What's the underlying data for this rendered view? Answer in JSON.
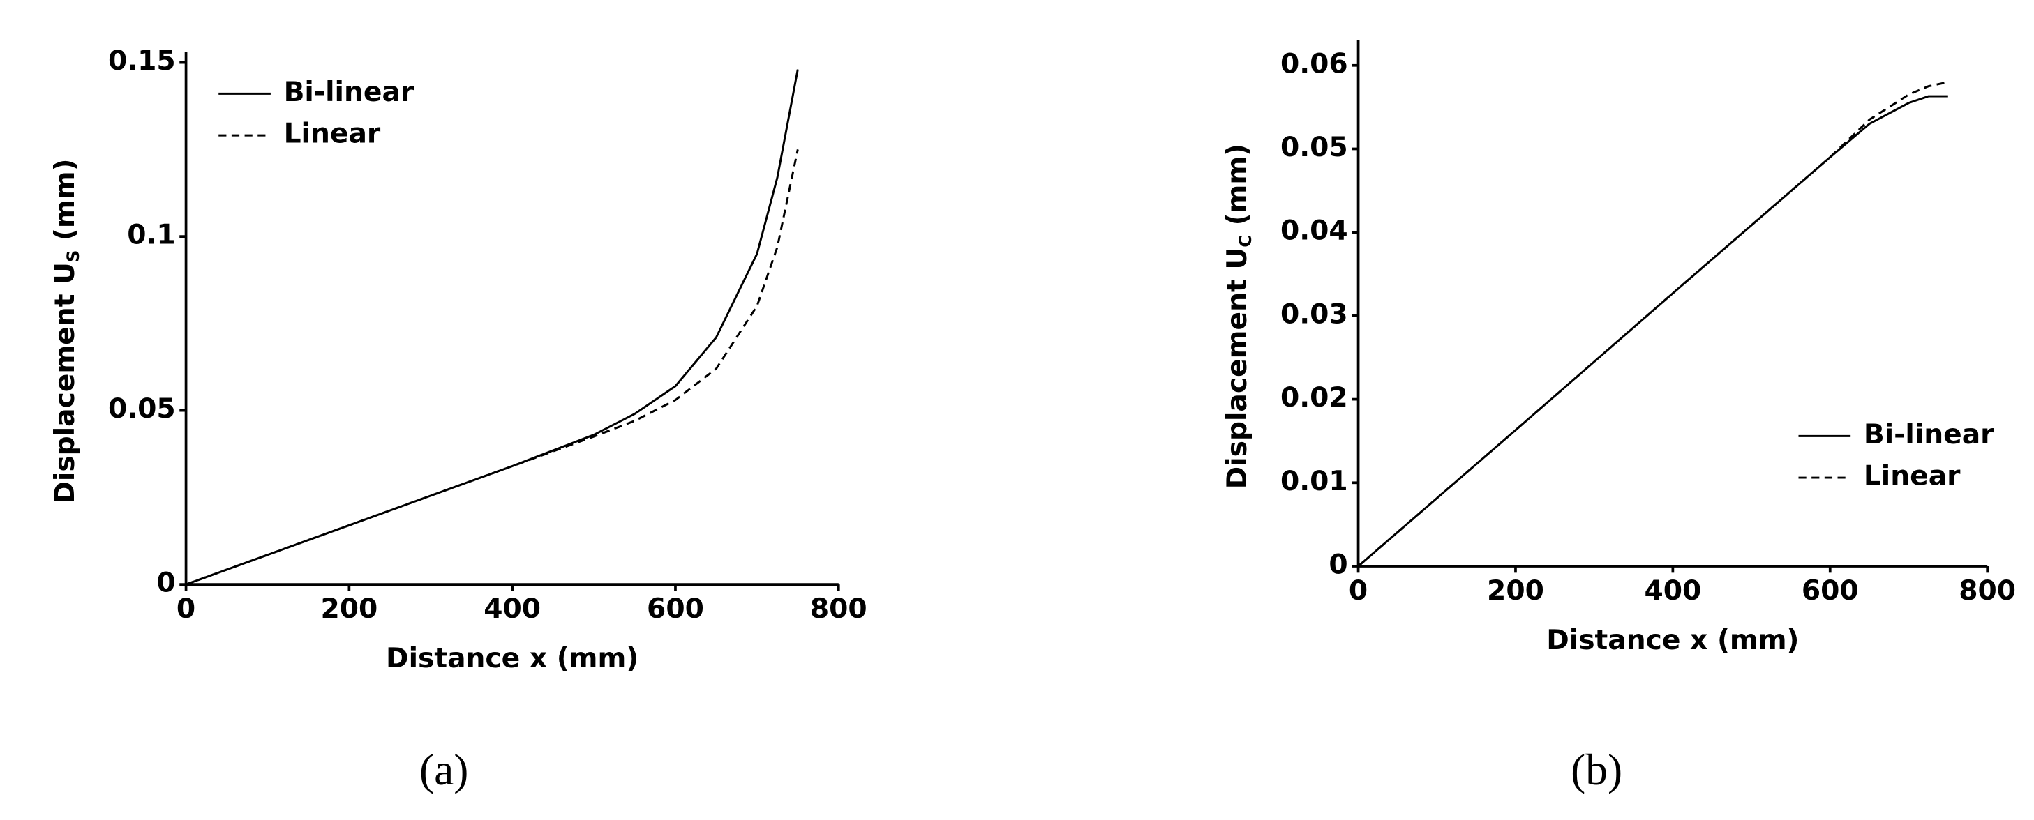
{
  "chart_data": [
    {
      "type": "line",
      "caption": "(a)",
      "x_label": "Distance x (mm)",
      "y_label": {
        "text": "Displacement U",
        "subscript": "S",
        "suffix": " (mm)"
      },
      "xlim": [
        0,
        800
      ],
      "xticks": [
        0,
        200,
        400,
        600,
        800
      ],
      "ylim": [
        0,
        0.153
      ],
      "yticks": [
        0,
        0.05,
        0.1,
        0.15
      ],
      "legend": "upper left",
      "series": [
        {
          "name": "Bi-linear",
          "color": "#000000",
          "style": "solid",
          "x": [
            0,
            100,
            200,
            300,
            400,
            500,
            550,
            600,
            650,
            700,
            725,
            750
          ],
          "values": [
            0,
            0.0085,
            0.017,
            0.0255,
            0.034,
            0.043,
            0.049,
            0.057,
            0.071,
            0.095,
            0.117,
            0.148
          ]
        },
        {
          "name": "Linear",
          "color": "#000000",
          "style": "dashed",
          "x": [
            0,
            100,
            200,
            300,
            400,
            500,
            550,
            600,
            650,
            700,
            725,
            750
          ],
          "values": [
            0,
            0.0085,
            0.017,
            0.0255,
            0.034,
            0.0425,
            0.047,
            0.053,
            0.062,
            0.08,
            0.097,
            0.125
          ]
        }
      ]
    },
    {
      "type": "line",
      "caption": "(b)",
      "x_label": "Distance x (mm)",
      "y_label": {
        "text": "Displacement U",
        "subscript": "C",
        "suffix": " (mm)"
      },
      "xlim": [
        0,
        800
      ],
      "xticks": [
        0,
        200,
        400,
        600,
        800
      ],
      "ylim": [
        0,
        0.063
      ],
      "yticks": [
        0,
        0.01,
        0.02,
        0.03,
        0.04,
        0.05,
        0.06
      ],
      "legend": "lower right",
      "series": [
        {
          "name": "Bi-linear",
          "color": "#000000",
          "style": "solid",
          "x": [
            0,
            200,
            400,
            600,
            650,
            700,
            725,
            750
          ],
          "values": [
            0,
            0.0163,
            0.0327,
            0.049,
            0.053,
            0.0555,
            0.0563,
            0.0563
          ]
        },
        {
          "name": "Linear",
          "color": "#000000",
          "style": "dashed",
          "x": [
            0,
            200,
            400,
            600,
            650,
            700,
            725,
            750
          ],
          "values": [
            0,
            0.0163,
            0.0327,
            0.049,
            0.0535,
            0.0565,
            0.0575,
            0.058
          ]
        }
      ]
    }
  ]
}
